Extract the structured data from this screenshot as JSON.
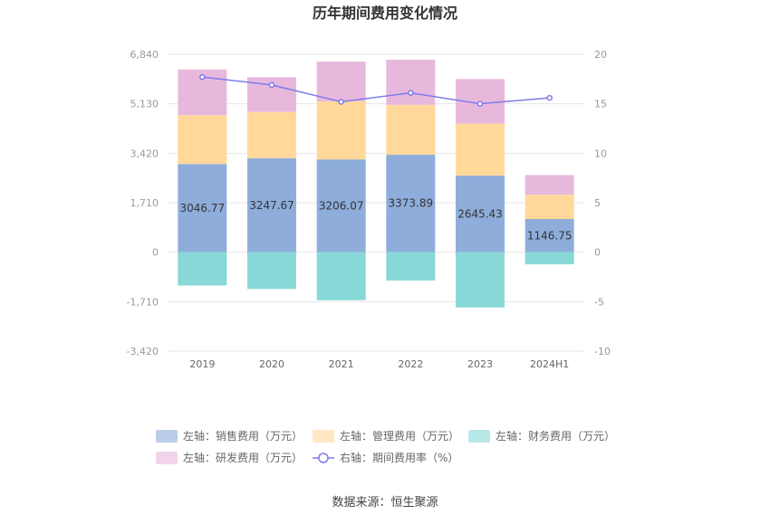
{
  "title": "历年期间费用变化情况",
  "source": "数据来源：恒生聚源",
  "chart_data": {
    "type": "bar",
    "stacked": true,
    "categories": [
      "2019",
      "2020",
      "2021",
      "2022",
      "2023",
      "2024H1"
    ],
    "left_axis": {
      "ticks": [
        "6,840",
        "5,130",
        "3,420",
        "1,710",
        "0",
        "-1,710",
        "-3,420"
      ],
      "ylim": [
        -3420,
        6840
      ]
    },
    "right_axis": {
      "ticks": [
        "20",
        "15",
        "10",
        "5",
        "0",
        "-5",
        "-10"
      ],
      "ylim": [
        -10,
        20
      ]
    },
    "series": [
      {
        "name": "左轴：销售费用（万元）",
        "axis": "left",
        "color": "#8eaddb",
        "values": [
          3046.77,
          3247.67,
          3206.07,
          3373.89,
          2645.43,
          1146.75
        ],
        "labels": [
          "3046.77",
          "3247.67",
          "3206.07",
          "3373.89",
          "2645.43",
          "1146.75"
        ]
      },
      {
        "name": "左轴：管理费用（万元）",
        "axis": "left",
        "color": "#ffd89a",
        "values": [
          1690,
          1600,
          2010,
          1720,
          1800,
          840
        ]
      },
      {
        "name": "左轴：财务费用（万元）",
        "axis": "left",
        "color": "#88d8d8",
        "values": [
          -1150,
          -1270,
          -1660,
          -980,
          -1910,
          -420
        ]
      },
      {
        "name": "左轴：研发费用（万元）",
        "axis": "left",
        "color": "#e8b8dc",
        "values": [
          1580,
          1200,
          1370,
          1560,
          1540,
          680
        ]
      },
      {
        "name": "右轴：期间费用率（%）",
        "axis": "right",
        "type": "line",
        "color": "#7d7bea",
        "values": [
          17.7,
          16.9,
          15.2,
          16.1,
          15.0,
          15.6
        ]
      }
    ]
  }
}
